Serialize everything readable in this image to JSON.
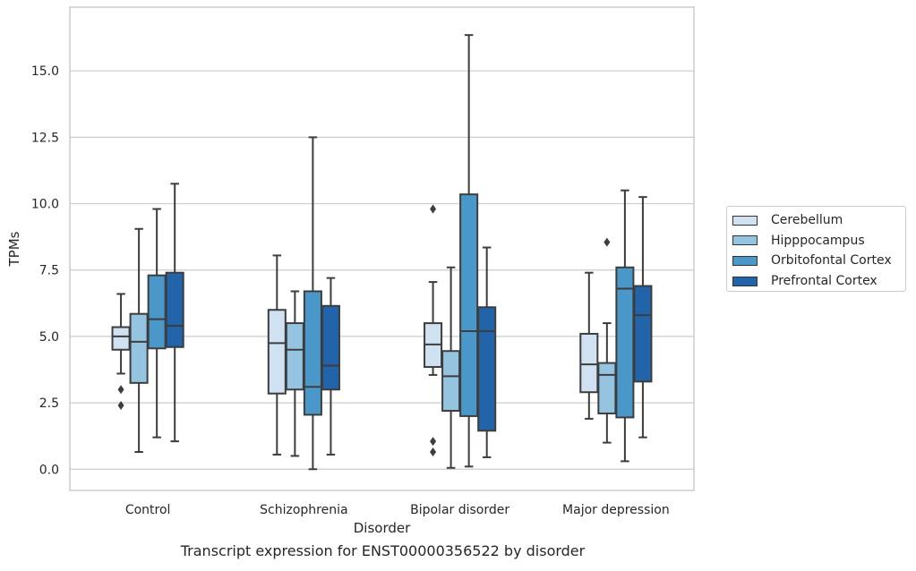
{
  "chart_data": {
    "type": "boxplot",
    "xlabel": "Disorder",
    "ylabel": "TPMs",
    "caption": "Transcript expression for ENST00000356522 by disorder",
    "ylim": [
      -0.8,
      17.4
    ],
    "yticks": [
      "0.0",
      "2.5",
      "5.0",
      "7.5",
      "10.0",
      "12.5",
      "15.0"
    ],
    "ytick_values": [
      0,
      2.5,
      5,
      7.5,
      10,
      12.5,
      15
    ],
    "grid": "horizontal",
    "legend_position": "right",
    "categories": [
      "Control",
      "Schizophrenia",
      "Bipolar disorder",
      "Major depression"
    ],
    "series": [
      {
        "name": "Cerebellum",
        "color": "#d0e1f2",
        "boxes": [
          {
            "whislo": 3.6,
            "q1": 4.5,
            "med": 5.0,
            "q3": 5.35,
            "whishi": 6.6,
            "fliers": [
              3.0,
              2.4
            ]
          },
          {
            "whislo": 0.55,
            "q1": 2.85,
            "med": 4.75,
            "q3": 6.0,
            "whishi": 8.05,
            "fliers": []
          },
          {
            "whislo": 3.55,
            "q1": 3.85,
            "med": 4.7,
            "q3": 5.5,
            "whishi": 7.05,
            "fliers": [
              9.8,
              1.05,
              0.65
            ]
          },
          {
            "whislo": 1.9,
            "q1": 2.9,
            "med": 3.95,
            "q3": 5.1,
            "whishi": 7.4,
            "fliers": []
          }
        ]
      },
      {
        "name": "Hipppocampus",
        "color": "#94c4df",
        "boxes": [
          {
            "whislo": 0.65,
            "q1": 3.25,
            "med": 4.8,
            "q3": 5.85,
            "whishi": 9.05,
            "fliers": []
          },
          {
            "whislo": 0.5,
            "q1": 3.0,
            "med": 4.5,
            "q3": 5.5,
            "whishi": 6.7,
            "fliers": []
          },
          {
            "whislo": 0.05,
            "q1": 2.2,
            "med": 3.5,
            "q3": 4.45,
            "whishi": 7.6,
            "fliers": []
          },
          {
            "whislo": 1.0,
            "q1": 2.1,
            "med": 3.55,
            "q3": 4.0,
            "whishi": 5.5,
            "fliers": [
              8.55
            ]
          }
        ]
      },
      {
        "name": "Orbitofontal Cortex",
        "color": "#4a98c9",
        "boxes": [
          {
            "whislo": 1.2,
            "q1": 4.55,
            "med": 5.65,
            "q3": 7.3,
            "whishi": 9.8,
            "fliers": []
          },
          {
            "whislo": 0.0,
            "q1": 2.05,
            "med": 3.1,
            "q3": 6.7,
            "whishi": 12.5,
            "fliers": []
          },
          {
            "whislo": 0.1,
            "q1": 2.0,
            "med": 5.2,
            "q3": 10.35,
            "whishi": 16.35,
            "fliers": []
          },
          {
            "whislo": 0.3,
            "q1": 1.95,
            "med": 6.8,
            "q3": 7.6,
            "whishi": 10.5,
            "fliers": []
          }
        ]
      },
      {
        "name": "Prefrontal Cortex",
        "color": "#2164a9",
        "boxes": [
          {
            "whislo": 1.05,
            "q1": 4.6,
            "med": 5.4,
            "q3": 7.4,
            "whishi": 10.75,
            "fliers": []
          },
          {
            "whislo": 0.55,
            "q1": 3.0,
            "med": 3.9,
            "q3": 6.15,
            "whishi": 7.2,
            "fliers": []
          },
          {
            "whislo": 0.45,
            "q1": 1.45,
            "med": 5.2,
            "q3": 6.1,
            "whishi": 8.35,
            "fliers": []
          },
          {
            "whislo": 1.2,
            "q1": 3.3,
            "med": 5.8,
            "q3": 6.9,
            "whishi": 10.25,
            "fliers": []
          }
        ]
      }
    ]
  }
}
